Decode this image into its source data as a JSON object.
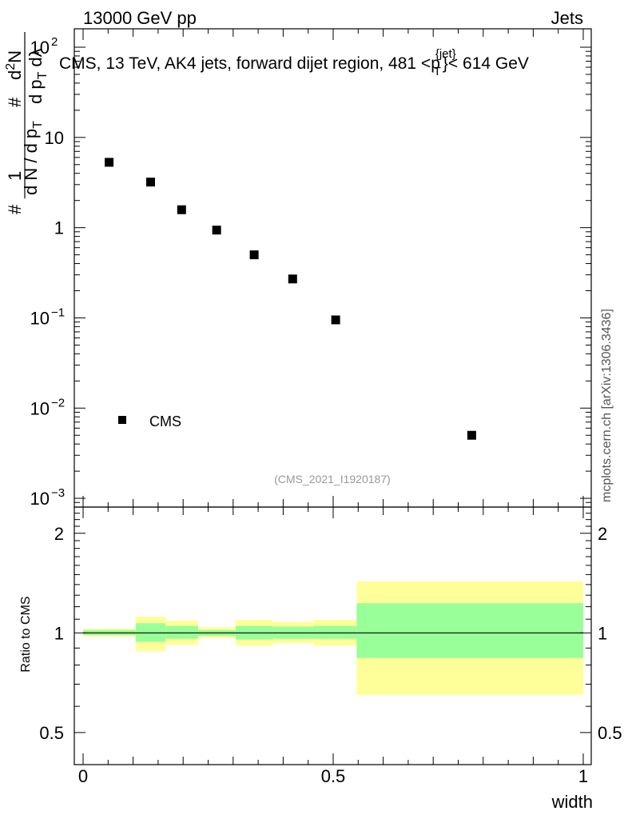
{
  "header": {
    "left": "13000 GeV pp",
    "right": "Jets"
  },
  "side_label": "mcplots.cern.ch [arXiv:1306.3436]",
  "chart_data": [
    {
      "type": "scatter",
      "title": "CMS, 13 TeV, AK4 jets, forward dijet region, 481 <p_T^{jet}< 614 GeV",
      "title_parts": {
        "prefix": "CMS, 13 TeV, AK4 jets, forward dijet region, 481 <p",
        "sup": "{jet}",
        "sub": "T",
        "suffix": "}< 614 GeV"
      },
      "ylabel": "1/(dN/dp_T) d²N/(dp_T dλ)",
      "ylabel_parts": {
        "hash": "#",
        "one": "1",
        "den": "d N / d p",
        "den_sub": "T",
        "hash2": "#",
        "num": "d",
        "num_sup": "2",
        "num_rest": "N",
        "den2": "d p",
        "den2_sub": "T",
        "den2_rest": "dλ"
      },
      "yscale": "log",
      "ylim": [
        0.0008,
        160
      ],
      "xlim": [
        0,
        1
      ],
      "yticks": [
        {
          "value": 100,
          "base": "10",
          "exp": "2"
        },
        {
          "value": 10,
          "label": "10"
        },
        {
          "value": 1,
          "label": "1"
        },
        {
          "value": 0.1,
          "base": "10",
          "exp": "−1"
        },
        {
          "value": 0.01,
          "base": "10",
          "exp": "−2"
        },
        {
          "value": 0.001,
          "base": "10",
          "exp": "−3"
        }
      ],
      "series": [
        {
          "name": "CMS",
          "marker": "square",
          "color": "#000000",
          "x": [
            0.052,
            0.135,
            0.197,
            0.267,
            0.342,
            0.419,
            0.505,
            0.777
          ],
          "y": [
            5.3,
            3.2,
            1.58,
            0.94,
            0.5,
            0.27,
            0.095,
            0.005
          ]
        }
      ],
      "legend": {
        "label": "CMS",
        "position": "bottom-left"
      },
      "watermark": "(CMS_2021_I1920187)"
    },
    {
      "type": "area",
      "ylabel": "Ratio to CMS",
      "xlabel": "width",
      "xlim": [
        0,
        1
      ],
      "ylim": [
        0.4,
        2.4
      ],
      "yscale": "log",
      "yticks": [
        {
          "value": 2,
          "label": "2"
        },
        {
          "value": 1,
          "label": "1"
        },
        {
          "value": 0.5,
          "label": "0.5"
        }
      ],
      "xticks": [
        {
          "value": 0,
          "label": "0"
        },
        {
          "value": 0.5,
          "label": "0.5"
        },
        {
          "value": 1,
          "label": "1"
        }
      ],
      "reference_line": 1,
      "bands": [
        {
          "x0": 0.0,
          "x1": 0.105,
          "stat_lo": 0.985,
          "stat_hi": 1.02,
          "tot_lo": 0.975,
          "tot_hi": 1.03
        },
        {
          "x0": 0.105,
          "x1": 0.165,
          "stat_lo": 0.94,
          "stat_hi": 1.07,
          "tot_lo": 0.88,
          "tot_hi": 1.12
        },
        {
          "x0": 0.165,
          "x1": 0.23,
          "stat_lo": 0.96,
          "stat_hi": 1.05,
          "tot_lo": 0.92,
          "tot_hi": 1.09
        },
        {
          "x0": 0.23,
          "x1": 0.305,
          "stat_lo": 0.98,
          "stat_hi": 1.02,
          "tot_lo": 0.965,
          "tot_hi": 1.04
        },
        {
          "x0": 0.305,
          "x1": 0.38,
          "stat_lo": 0.955,
          "stat_hi": 1.05,
          "tot_lo": 0.915,
          "tot_hi": 1.095
        },
        {
          "x0": 0.38,
          "x1": 0.46,
          "stat_lo": 0.96,
          "stat_hi": 1.045,
          "tot_lo": 0.93,
          "tot_hi": 1.08
        },
        {
          "x0": 0.46,
          "x1": 0.547,
          "stat_lo": 0.96,
          "stat_hi": 1.05,
          "tot_lo": 0.915,
          "tot_hi": 1.095
        },
        {
          "x0": 0.547,
          "x1": 1.0,
          "stat_lo": 0.84,
          "stat_hi": 1.23,
          "tot_lo": 0.65,
          "tot_hi": 1.43
        }
      ],
      "colors": {
        "stat": "#99ff99",
        "total": "#ffff99",
        "line": "#000000"
      }
    }
  ]
}
